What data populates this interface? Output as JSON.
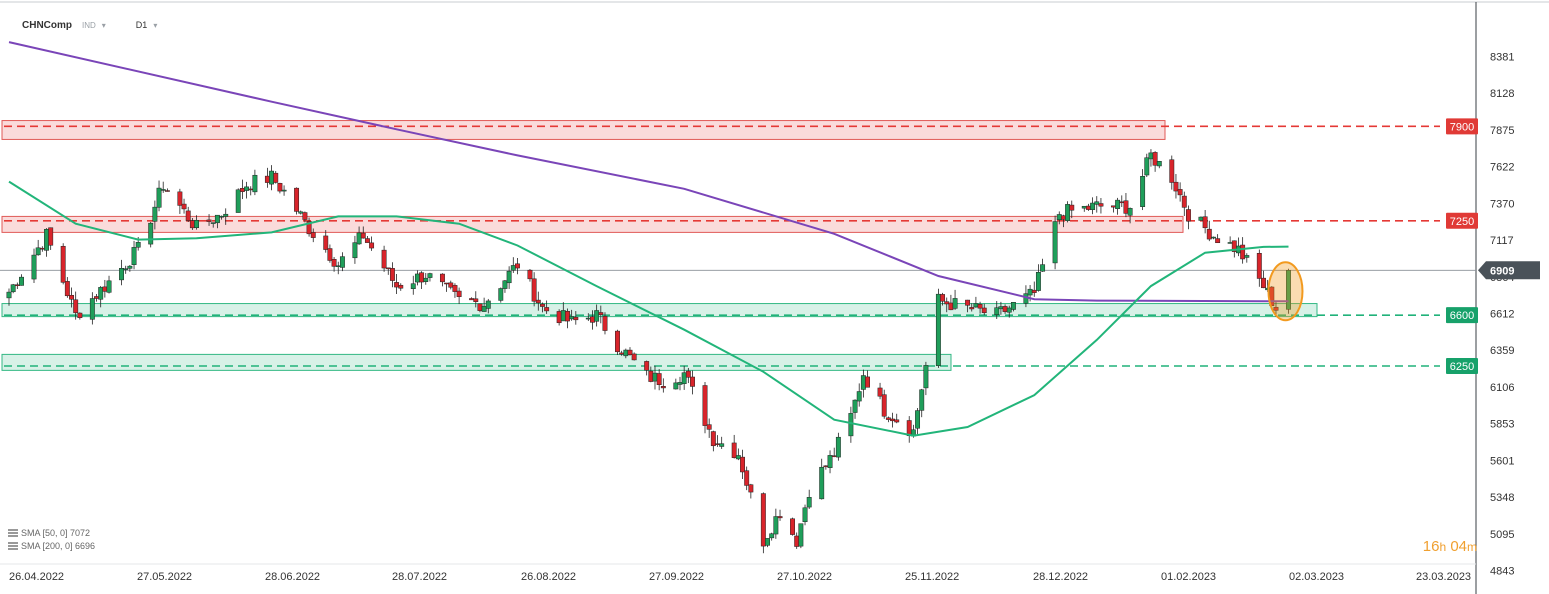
{
  "header": {
    "symbol": "CHNComp",
    "type": "IND",
    "timeframe": "D1"
  },
  "indicators": [
    {
      "label": "SMA [50, 0] 7072"
    },
    {
      "label": "SMA [200, 0] 6696"
    }
  ],
  "countdown": {
    "hours": "16",
    "h_unit": "h",
    "minutes": "04",
    "m_unit": "m"
  },
  "colors": {
    "up": "#1f9e5a",
    "down": "#d8242b",
    "sma50": "#22b57a",
    "sma200": "#7a45b8",
    "resistance": "#e53935",
    "support": "#21b27a",
    "price_tag": "#4a5259",
    "highlight": "#f29a1f"
  },
  "chart_data": {
    "type": "candlestick",
    "ylim": [
      4843,
      8600
    ],
    "y_ticks": [
      8381,
      8128,
      7875,
      7622,
      7370,
      7117,
      6864,
      6612,
      6359,
      6106,
      5853,
      5601,
      5348,
      5095,
      4843
    ],
    "x_ticks": [
      "26.04.2022",
      "27.05.2022",
      "28.06.2022",
      "28.07.2022",
      "26.08.2022",
      "27.09.2022",
      "27.10.2022",
      "25.11.2022",
      "28.12.2022",
      "01.02.2023",
      "02.03.2023",
      "23.03.2023"
    ],
    "current_price": 6909,
    "levels": [
      {
        "label": "7900",
        "value": 7900,
        "kind": "resistance",
        "zone": [
          7810,
          7940
        ]
      },
      {
        "label": "7250",
        "value": 7250,
        "kind": "resistance",
        "zone": [
          7170,
          7280
        ]
      },
      {
        "label": "6600",
        "value": 6600,
        "kind": "support",
        "zone": [
          6590,
          6680
        ]
      },
      {
        "label": "6250",
        "value": 6250,
        "kind": "support",
        "zone": [
          6220,
          6330
        ]
      }
    ],
    "anchors": [
      [
        "2022-04-26",
        6760
      ],
      [
        "2022-05-05",
        7150
      ],
      [
        "2022-05-12",
        6600
      ],
      [
        "2022-05-20",
        6830
      ],
      [
        "2022-05-27",
        7050
      ],
      [
        "2022-06-02",
        7500
      ],
      [
        "2022-06-10",
        7200
      ],
      [
        "2022-06-16",
        7300
      ],
      [
        "2022-06-22",
        7500
      ],
      [
        "2022-06-28",
        7550
      ],
      [
        "2022-07-01",
        7450
      ],
      [
        "2022-07-07",
        7200
      ],
      [
        "2022-07-14",
        6950
      ],
      [
        "2022-07-20",
        7150
      ],
      [
        "2022-07-28",
        6800
      ],
      [
        "2022-08-04",
        6880
      ],
      [
        "2022-08-12",
        6700
      ],
      [
        "2022-08-18",
        6680
      ],
      [
        "2022-08-26",
        6950
      ],
      [
        "2022-09-01",
        6650
      ],
      [
        "2022-09-08",
        6550
      ],
      [
        "2022-09-14",
        6600
      ],
      [
        "2022-09-19",
        6400
      ],
      [
        "2022-09-26",
        6180
      ],
      [
        "2022-09-30",
        6150
      ],
      [
        "2022-10-05",
        6200
      ],
      [
        "2022-10-12",
        5750
      ],
      [
        "2022-10-18",
        5650
      ],
      [
        "2022-10-24",
        5050
      ],
      [
        "2022-10-28",
        5250
      ],
      [
        "2022-11-01",
        5050
      ],
      [
        "2022-11-04",
        5400
      ],
      [
        "2022-11-10",
        5650
      ],
      [
        "2022-11-14",
        5900
      ],
      [
        "2022-11-17",
        6200
      ],
      [
        "2022-11-22",
        5950
      ],
      [
        "2022-11-29",
        5800
      ],
      [
        "2022-12-05",
        6700
      ],
      [
        "2022-12-12",
        6650
      ],
      [
        "2022-12-19",
        6600
      ],
      [
        "2022-12-28",
        6750
      ],
      [
        "2023-01-03",
        7300
      ],
      [
        "2023-01-12",
        7350
      ],
      [
        "2023-01-20",
        7350
      ],
      [
        "2023-01-25",
        7700
      ],
      [
        "2023-01-30",
        7550
      ],
      [
        "2023-02-03",
        7300
      ],
      [
        "2023-02-09",
        7150
      ],
      [
        "2023-02-15",
        7050
      ],
      [
        "2023-02-21",
        6800
      ],
      [
        "2023-02-24",
        6650
      ],
      [
        "2023-02-27",
        6909
      ]
    ],
    "last_candle": {
      "date": "2023-02-27",
      "open": 6640,
      "high": 6920,
      "low": 6610,
      "close": 6909
    },
    "sma50": [
      [
        "2022-04-26",
        7520
      ],
      [
        "2022-05-12",
        7230
      ],
      [
        "2022-05-27",
        7120
      ],
      [
        "2022-06-10",
        7130
      ],
      [
        "2022-06-28",
        7170
      ],
      [
        "2022-07-14",
        7280
      ],
      [
        "2022-07-28",
        7280
      ],
      [
        "2022-08-12",
        7230
      ],
      [
        "2022-08-26",
        7080
      ],
      [
        "2022-09-14",
        6800
      ],
      [
        "2022-10-05",
        6500
      ],
      [
        "2022-10-24",
        6210
      ],
      [
        "2022-11-10",
        5880
      ],
      [
        "2022-11-29",
        5770
      ],
      [
        "2022-12-12",
        5830
      ],
      [
        "2022-12-28",
        6050
      ],
      [
        "2023-01-12",
        6430
      ],
      [
        "2023-01-25",
        6800
      ],
      [
        "2023-02-07",
        7030
      ],
      [
        "2023-02-21",
        7070
      ],
      [
        "2023-02-27",
        7072
      ]
    ],
    "sma200": [
      [
        "2022-04-26",
        8480
      ],
      [
        "2022-06-28",
        8070
      ],
      [
        "2022-07-28",
        7880
      ],
      [
        "2022-08-26",
        7700
      ],
      [
        "2022-10-05",
        7470
      ],
      [
        "2022-11-10",
        7160
      ],
      [
        "2022-12-05",
        6870
      ],
      [
        "2022-12-28",
        6710
      ],
      [
        "2023-01-12",
        6700
      ],
      [
        "2023-02-21",
        6696
      ],
      [
        "2023-02-27",
        6696
      ]
    ]
  }
}
